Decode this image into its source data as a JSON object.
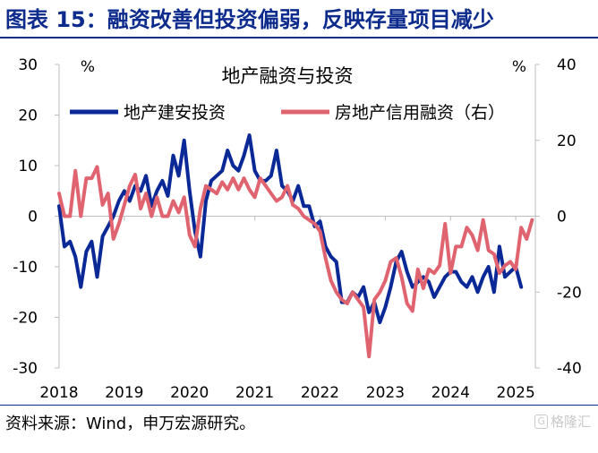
{
  "figure_title": "图表 15：融资改善但投资偏弱，反映存量项目减少",
  "source_note": "资料来源：Wind，申万宏源研究。",
  "watermark": {
    "icon": "gelonghui-logo-icon",
    "text": "格隆汇"
  },
  "colors": {
    "title": "#0d2b8c",
    "investment": "#0a2896",
    "credit": "#e06470",
    "axis": "#bdbdbd"
  },
  "chart_data": {
    "type": "line",
    "title": "地产融资与投资",
    "left_axis": {
      "unit": "%",
      "ylim": [
        -30,
        30
      ],
      "ticks": [
        "30",
        "20",
        "10",
        "0",
        "-10",
        "-20",
        "-30"
      ]
    },
    "right_axis": {
      "unit": "%",
      "ylim": [
        -40,
        40
      ],
      "ticks": [
        "40",
        "20",
        "0",
        "-20",
        "-40"
      ]
    },
    "x_axis": {
      "range": [
        2018.0,
        2025.3
      ],
      "tick_labels": [
        "2018",
        "2019",
        "2020",
        "2021",
        "2022",
        "2023",
        "2024",
        "2025"
      ]
    },
    "grid": false,
    "legend_position": "top",
    "series": [
      {
        "name": "地产建安投资",
        "axis": "left",
        "color": "#0a2896",
        "x": [
          2018.0,
          2018.083,
          2018.167,
          2018.25,
          2018.333,
          2018.417,
          2018.5,
          2018.583,
          2018.667,
          2018.75,
          2018.833,
          2018.917,
          2019.0,
          2019.083,
          2019.167,
          2019.25,
          2019.333,
          2019.417,
          2019.5,
          2019.583,
          2019.667,
          2019.75,
          2019.833,
          2019.917,
          2020.0,
          2020.083,
          2020.167,
          2020.25,
          2020.333,
          2020.417,
          2020.5,
          2020.583,
          2020.667,
          2020.75,
          2020.833,
          2020.917,
          2021.0,
          2021.083,
          2021.167,
          2021.25,
          2021.333,
          2021.417,
          2021.5,
          2021.583,
          2021.667,
          2021.75,
          2021.833,
          2021.917,
          2022.0,
          2022.083,
          2022.167,
          2022.25,
          2022.333,
          2022.417,
          2022.5,
          2022.583,
          2022.667,
          2022.75,
          2022.833,
          2022.917,
          2023.0,
          2023.083,
          2023.167,
          2023.25,
          2023.333,
          2023.417,
          2023.5,
          2023.583,
          2023.667,
          2023.75,
          2023.833,
          2023.917,
          2024.0,
          2024.083,
          2024.167,
          2024.25,
          2024.333,
          2024.417,
          2024.5,
          2024.583,
          2024.667,
          2024.75,
          2024.833,
          2024.917,
          2025.0,
          2025.083
        ],
        "values": [
          2,
          -6,
          -5,
          -8,
          -14,
          -7,
          -5,
          -12,
          -4,
          -2,
          0,
          3,
          5,
          3,
          6,
          5,
          8,
          2,
          5,
          7,
          4,
          12,
          8,
          15,
          5,
          -3,
          -8,
          3,
          7,
          8,
          9,
          13,
          10,
          9,
          12,
          16,
          9,
          7,
          7,
          8,
          13,
          6,
          5,
          3,
          6,
          2,
          2,
          -2,
          -1,
          -6,
          -8,
          -9,
          -17,
          -17,
          -15,
          -16,
          -14,
          -19,
          -17,
          -21,
          -18,
          -14,
          -9,
          -7,
          -11,
          -14,
          -13,
          -12,
          -13,
          -16,
          -14,
          -12,
          -11,
          -11,
          -13,
          -14,
          -12,
          -15,
          -12,
          -10,
          -15,
          -6,
          -12,
          -11,
          -10,
          -14
        ]
      },
      {
        "name": "房地产信用融资（右）",
        "axis": "right",
        "color": "#e06470",
        "x": [
          2018.0,
          2018.083,
          2018.167,
          2018.25,
          2018.333,
          2018.417,
          2018.5,
          2018.583,
          2018.667,
          2018.75,
          2018.833,
          2018.917,
          2019.0,
          2019.083,
          2019.167,
          2019.25,
          2019.333,
          2019.417,
          2019.5,
          2019.583,
          2019.667,
          2019.75,
          2019.833,
          2019.917,
          2020.0,
          2020.083,
          2020.167,
          2020.25,
          2020.333,
          2020.417,
          2020.5,
          2020.583,
          2020.667,
          2020.75,
          2020.833,
          2020.917,
          2021.0,
          2021.083,
          2021.167,
          2021.25,
          2021.333,
          2021.417,
          2021.5,
          2021.583,
          2021.667,
          2021.75,
          2021.833,
          2021.917,
          2022.0,
          2022.083,
          2022.167,
          2022.25,
          2022.333,
          2022.417,
          2022.5,
          2022.583,
          2022.667,
          2022.75,
          2022.833,
          2022.917,
          2023.0,
          2023.083,
          2023.167,
          2023.25,
          2023.333,
          2023.417,
          2023.5,
          2023.583,
          2023.667,
          2023.75,
          2023.833,
          2023.917,
          2024.0,
          2024.083,
          2024.167,
          2024.25,
          2024.333,
          2024.417,
          2024.5,
          2024.583,
          2024.667,
          2024.75,
          2024.833,
          2024.917,
          2025.0,
          2025.083,
          2025.167,
          2025.25
        ],
        "values": [
          6,
          0,
          0,
          12,
          0,
          10,
          10,
          13,
          3,
          6,
          -6,
          -2,
          3,
          8,
          11,
          2,
          6,
          0,
          5,
          0,
          0,
          4,
          1,
          5,
          -5,
          -8,
          2,
          8,
          7,
          6,
          9,
          7,
          10,
          7,
          10,
          7,
          5,
          10,
          8,
          6,
          4,
          5,
          8,
          3,
          2,
          0,
          -1,
          -2,
          -4,
          -11,
          -17,
          -20,
          -22,
          -23,
          -20,
          -22,
          -24,
          -37,
          -22,
          -20,
          -17,
          -12,
          -11,
          -16,
          -23,
          -25,
          -14,
          -19,
          -14,
          -15,
          -13,
          -2,
          -15,
          -8,
          -8,
          -3,
          -5,
          -9,
          -1,
          -9,
          -10,
          -15,
          -13,
          -12,
          -14,
          -3,
          -6,
          -1
        ]
      }
    ]
  }
}
